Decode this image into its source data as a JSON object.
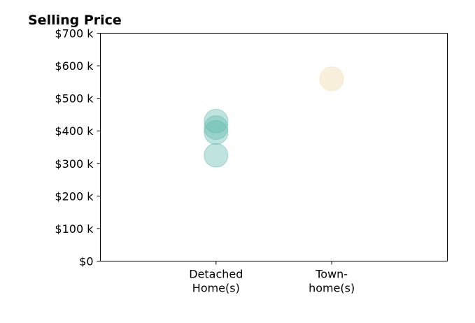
{
  "chart_data": {
    "type": "scatter",
    "title": "Selling Price",
    "xlabel": "",
    "ylabel": "",
    "categories": [
      [
        "Detached",
        "Home(s)"
      ],
      [
        "Town-",
        "home(s)"
      ]
    ],
    "y_ticks": [
      0,
      100,
      200,
      300,
      400,
      500,
      600,
      700
    ],
    "y_tick_labels": [
      "$0",
      "$100 k",
      "$200 k",
      "$300 k",
      "$400 k",
      "$500 k",
      "$600 k",
      "$700 k"
    ],
    "ylim": [
      0,
      700
    ],
    "xlim": [
      0,
      3
    ],
    "grid": false,
    "series": [
      {
        "category": 0,
        "color": "#5fb8ad",
        "values": [
          430,
          410,
          395,
          325
        ]
      },
      {
        "category": 1,
        "color": "#f0d9a8",
        "values": [
          560
        ]
      }
    ]
  }
}
